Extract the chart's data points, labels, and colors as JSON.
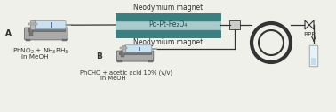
{
  "bg_color": "#f0f0eb",
  "magnet_color": "#3a8080",
  "catalyst_color": "#a8cccc",
  "catalyst_text": "Pd-Pt-Fe₂O₄",
  "magnet_text": "Neodymium magnet",
  "line_color": "#333333",
  "device_body_color": "#aaaaaa",
  "device_dark_color": "#777777",
  "syringe_color": "#cce0ee",
  "syringe_body_color": "#dddddd",
  "label_A": "A",
  "label_B": "B",
  "text_A1": "PhNO$_2$ + NH$_3$BH$_3$",
  "text_A2": "in MeOH",
  "text_B1": "PhCHO + acetic acid 10% (v/v)",
  "text_B2": "in MeOH",
  "bpr_text": "BPR",
  "font_size_label": 6.5,
  "font_size_text": 5.2,
  "font_size_catalyst": 5.5,
  "font_size_magnet": 5.5
}
